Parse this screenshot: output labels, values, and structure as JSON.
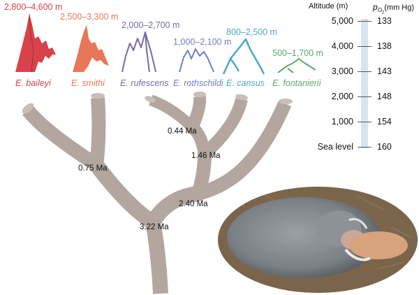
{
  "species": [
    {
      "name": "E. baileyi",
      "range": "2,800–4,600 m",
      "color": "#d8434b"
    },
    {
      "name": "E. smithi",
      "range": "2,500–3,300 m",
      "color": "#e8775a"
    },
    {
      "name": "E. rufescens",
      "range": "2,000–2,700 m",
      "color": "#7a6aa8"
    },
    {
      "name": "E. rothschildi",
      "range": "1,000–2,100 m",
      "color": "#6f7fc2"
    },
    {
      "name": "E. cansus",
      "range": "800–2,500 m",
      "color": "#49a9c4"
    },
    {
      "name": "E. fontanierii",
      "range": "500–1,700 m",
      "color": "#5aa86a"
    }
  ],
  "nodes": [
    "0.44 Ma",
    "1.46 Ma",
    "0.75 Ma",
    "2.40 Ma",
    "3.22 Ma"
  ],
  "axis": {
    "altitude_title": "Altitude (m)",
    "pressure_title_p": "p",
    "pressure_title_sub": "O",
    "pressure_title_sub2": "2",
    "pressure_title_unit": "(mm Hg)",
    "ticks": [
      {
        "altitude": "5,000",
        "pressure": "133"
      },
      {
        "altitude": "4,000",
        "pressure": "138"
      },
      {
        "altitude": "3,000",
        "pressure": "143"
      },
      {
        "altitude": "2,000",
        "pressure": "148"
      },
      {
        "altitude": "1,000",
        "pressure": "154"
      },
      {
        "altitude": "Sea level",
        "pressure": "160"
      }
    ]
  },
  "colors": {
    "tree": "#b3a69f",
    "scale_bar": "#d6e6ef"
  },
  "photo": {
    "subject": "zokor-photo"
  }
}
